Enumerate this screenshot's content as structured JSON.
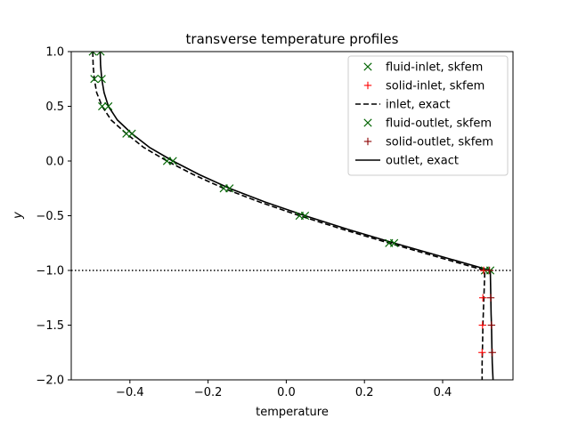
{
  "chart_data": {
    "type": "line",
    "title": "transverse temperature profiles",
    "xlabel": "temperature",
    "ylabel": "y",
    "xlim": [
      -0.55,
      0.58
    ],
    "ylim": [
      -2.0,
      1.0
    ],
    "xticks": [
      -0.4,
      -0.2,
      0.0,
      0.2,
      0.4
    ],
    "yticks": [
      -2.0,
      -1.5,
      -1.0,
      -0.5,
      0.0,
      0.5,
      1.0
    ],
    "xtick_labels": [
      "−0.4",
      "−0.2",
      "0.0",
      "0.2",
      "0.4"
    ],
    "ytick_labels": [
      "−2.0",
      "−1.5",
      "−1.0",
      "−0.5",
      "0.0",
      "0.5",
      "1.0"
    ],
    "grid": false,
    "legend_position": "top-right",
    "hline": {
      "y": -1.0,
      "style": "dotted",
      "color": "#000000"
    },
    "series": [
      {
        "name": "fluid-inlet, skfem",
        "style": "marker-x",
        "color": "#006400",
        "x": [
          -0.495,
          -0.491,
          -0.471,
          -0.409,
          -0.305,
          -0.16,
          0.034,
          0.263,
          0.508
        ],
        "y": [
          1.0,
          0.75,
          0.5,
          0.25,
          0.0,
          -0.25,
          -0.5,
          -0.75,
          -1.0
        ]
      },
      {
        "name": "solid-inlet, skfem",
        "style": "marker-plus",
        "color": "#ff0000",
        "x": [
          0.505,
          0.503,
          0.502,
          0.501
        ],
        "y": [
          -1.0,
          -1.25,
          -1.5,
          -1.75
        ]
      },
      {
        "name": "inlet, exact",
        "style": "dashed",
        "color": "#000000",
        "x": [
          -0.495,
          -0.494,
          -0.491,
          -0.485,
          -0.471,
          -0.448,
          -0.409,
          -0.365,
          -0.305,
          -0.237,
          -0.16,
          -0.068,
          0.034,
          0.145,
          0.263,
          0.385,
          0.508,
          0.506,
          0.504,
          0.503,
          0.502,
          0.501,
          0.501
        ],
        "y": [
          1.0,
          0.875,
          0.75,
          0.625,
          0.5,
          0.375,
          0.25,
          0.125,
          0.0,
          -0.125,
          -0.25,
          -0.375,
          -0.5,
          -0.625,
          -0.75,
          -0.875,
          -1.0,
          -1.2,
          -1.4,
          -1.5,
          -1.7,
          -1.85,
          -2.0
        ]
      },
      {
        "name": "fluid-outlet, skfem",
        "style": "marker-x",
        "color": "#006400",
        "x": [
          -0.475,
          -0.472,
          -0.455,
          -0.395,
          -0.29,
          -0.145,
          0.048,
          0.276,
          0.522
        ],
        "y": [
          1.0,
          0.75,
          0.5,
          0.25,
          0.0,
          -0.25,
          -0.5,
          -0.75,
          -1.0
        ]
      },
      {
        "name": "solid-outlet, skfem",
        "style": "marker-plus",
        "color": "#8b0000",
        "x": [
          0.52,
          0.523,
          0.525,
          0.527
        ],
        "y": [
          -1.0,
          -1.25,
          -1.5,
          -1.75
        ]
      },
      {
        "name": "outlet, exact",
        "style": "solid",
        "color": "#000000",
        "x": [
          -0.476,
          -0.475,
          -0.472,
          -0.466,
          -0.455,
          -0.432,
          -0.395,
          -0.35,
          -0.29,
          -0.222,
          -0.145,
          -0.054,
          0.048,
          0.158,
          0.276,
          0.399,
          0.522,
          0.523,
          0.524,
          0.525,
          0.526,
          0.527,
          0.529
        ],
        "y": [
          1.0,
          0.875,
          0.75,
          0.625,
          0.5,
          0.375,
          0.25,
          0.125,
          0.0,
          -0.125,
          -0.25,
          -0.375,
          -0.5,
          -0.625,
          -0.75,
          -0.875,
          -1.0,
          -1.2,
          -1.4,
          -1.5,
          -1.7,
          -1.85,
          -2.0
        ]
      }
    ]
  }
}
